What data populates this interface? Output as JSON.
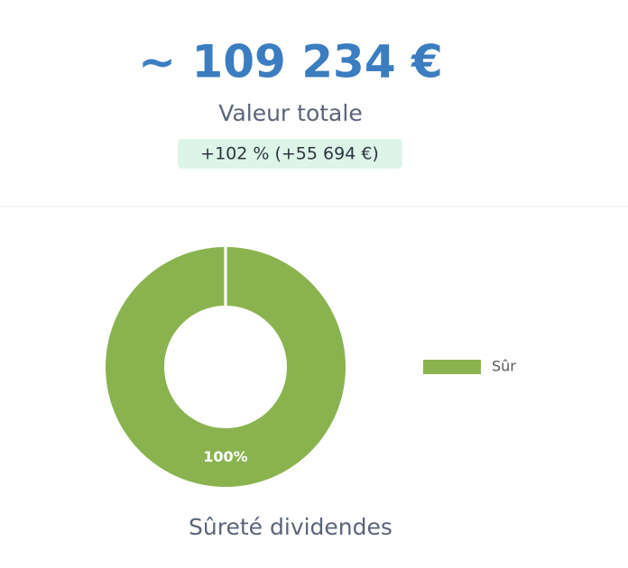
{
  "header": {
    "total": "~ 109 234 €",
    "label": "Valeur totale",
    "change": "+102 % (+55 694 €)"
  },
  "chart_data": {
    "type": "pie",
    "title": "Sûreté dividendes",
    "categories": [
      "Sûr"
    ],
    "values": [
      100
    ],
    "value_labels": [
      "100%"
    ],
    "colors": [
      "#8ab34f"
    ]
  }
}
